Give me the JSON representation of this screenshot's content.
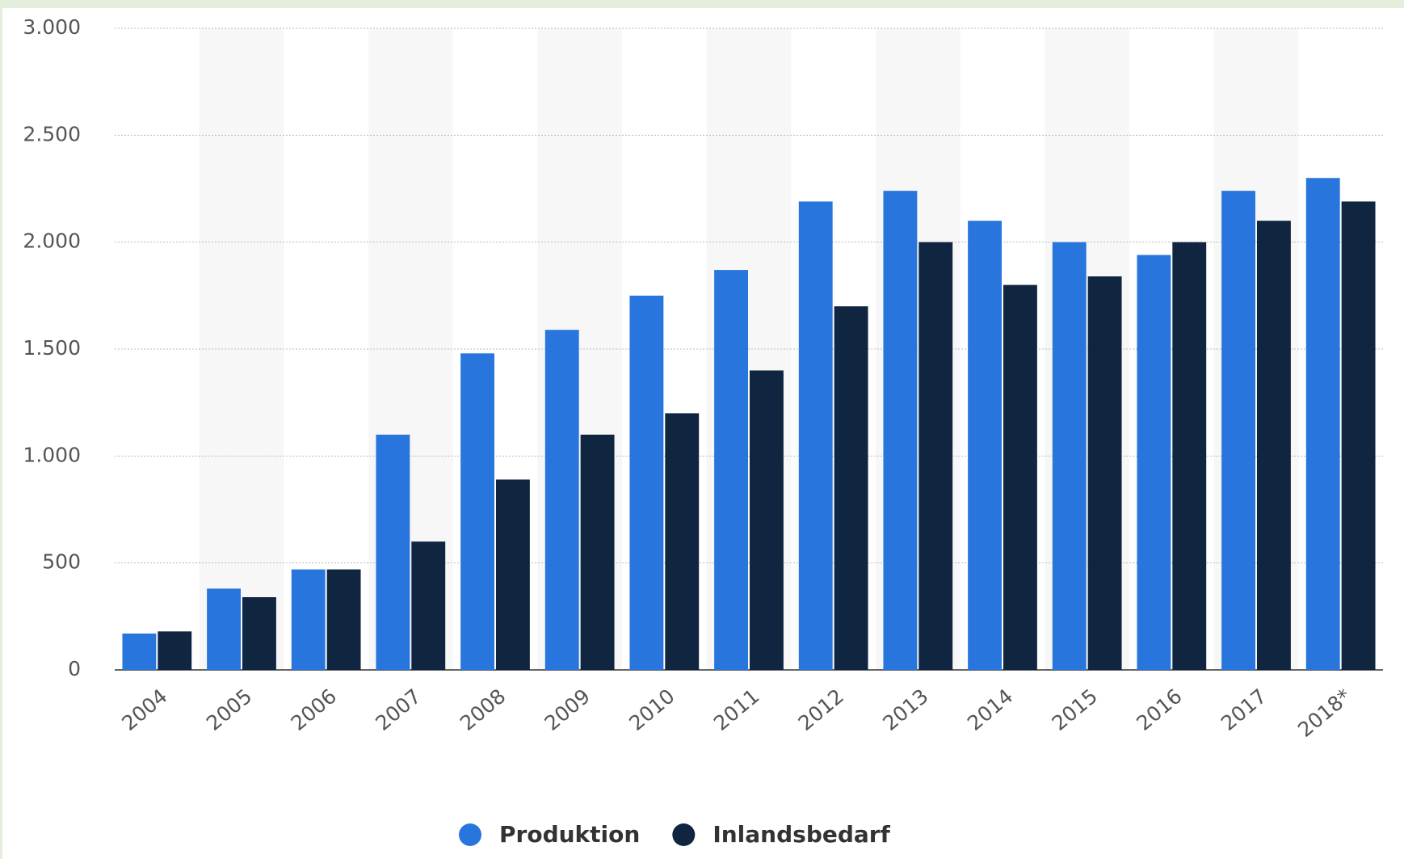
{
  "chart_data": {
    "type": "bar",
    "categories": [
      "2004",
      "2005",
      "2006",
      "2007",
      "2008",
      "2009",
      "2010",
      "2011",
      "2012",
      "2013",
      "2014",
      "2015",
      "2016",
      "2017",
      "2018*"
    ],
    "series": [
      {
        "name": "Produktion",
        "color": "#2876dd",
        "values": [
          170,
          380,
          470,
          1100,
          1480,
          1590,
          1750,
          1870,
          2190,
          2240,
          2100,
          2000,
          1940,
          2240,
          2300
        ]
      },
      {
        "name": "Inlandsbedarf",
        "color": "#0f2540",
        "values": [
          180,
          340,
          470,
          600,
          890,
          1100,
          1200,
          1400,
          1700,
          2000,
          1800,
          1840,
          2000,
          2100,
          2190
        ]
      }
    ],
    "ylim": [
      0,
      3000
    ],
    "yticks": [
      0,
      500,
      {
        "value": 1000,
        "label": "1.000"
      },
      {
        "value": 1500,
        "label": "1.500"
      },
      {
        "value": 2000,
        "label": "2.000"
      },
      {
        "value": 2500,
        "label": "2.500"
      },
      {
        "value": 3000,
        "label": "3.000"
      }
    ],
    "grid": true
  }
}
